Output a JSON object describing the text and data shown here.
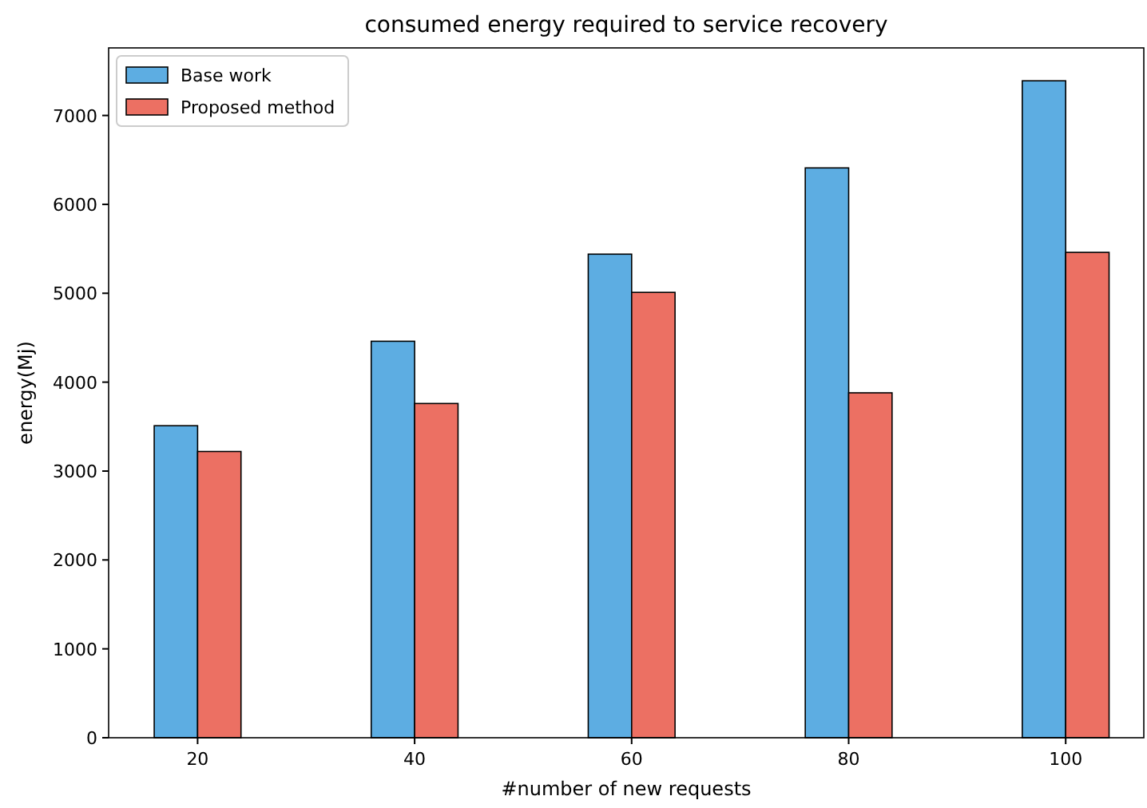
{
  "chart_data": {
    "type": "bar",
    "title": "consumed energy required to service recovery",
    "xlabel": "#number of new requests",
    "ylabel": "energy(Mj)",
    "x": [
      20,
      40,
      60,
      80,
      100
    ],
    "xlim": [
      11.8,
      107.2
    ],
    "xticks": [
      20,
      40,
      60,
      80,
      100
    ],
    "ylim": [
      0,
      7760
    ],
    "yticks": [
      0,
      1000,
      2000,
      3000,
      4000,
      5000,
      6000,
      7000
    ],
    "series": [
      {
        "name": "Base work",
        "color": "#5dade2",
        "values": [
          3510,
          4460,
          5440,
          6410,
          7390
        ]
      },
      {
        "name": "Proposed method",
        "color": "#ec7063",
        "values": [
          3220,
          3760,
          5010,
          3880,
          5460
        ]
      }
    ],
    "legend": "top left",
    "grid": false
  }
}
